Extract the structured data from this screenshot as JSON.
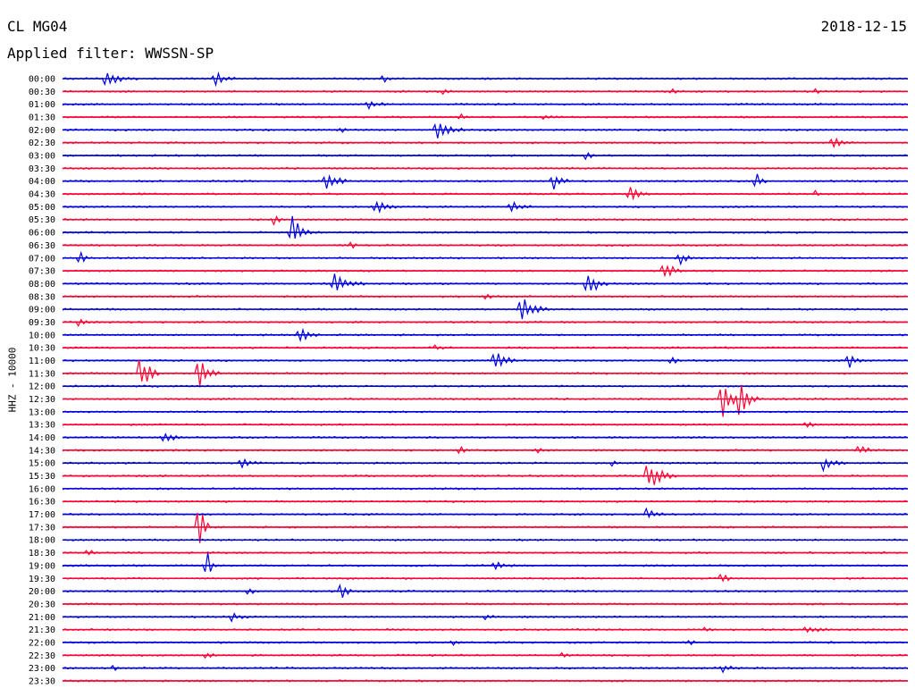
{
  "header": {
    "station": "CL MG04",
    "date": "2018-12-15",
    "filter": "Applied filter: WWSSN-SP"
  },
  "colors": {
    "odd": "#0000dd",
    "even": "#ff0033",
    "text": "#000000"
  },
  "chart_data": {
    "type": "line",
    "title": "CL MG04",
    "ylabel": "HHZ - 10000",
    "rows": [
      "00:00",
      "00:30",
      "01:00",
      "01:30",
      "02:00",
      "02:30",
      "03:00",
      "03:30",
      "04:00",
      "04:30",
      "05:00",
      "05:30",
      "06:00",
      "06:30",
      "07:00",
      "07:30",
      "08:00",
      "08:30",
      "09:00",
      "09:30",
      "10:00",
      "10:30",
      "11:00",
      "11:30",
      "12:00",
      "12:30",
      "13:00",
      "13:30",
      "14:00",
      "14:30",
      "15:00",
      "15:30",
      "16:00",
      "16:30",
      "17:00",
      "17:30",
      "18:00",
      "18:30",
      "19:00",
      "19:30",
      "20:00",
      "20:30",
      "21:00",
      "21:30",
      "22:00",
      "22:30",
      "23:00",
      "23:30"
    ],
    "events": [
      [
        0,
        0.05,
        10,
        3
      ],
      [
        0,
        0.18,
        8,
        2
      ],
      [
        0,
        0.38,
        4,
        1
      ],
      [
        1,
        0.45,
        3,
        1
      ],
      [
        1,
        0.72,
        4,
        1
      ],
      [
        1,
        0.89,
        3,
        1
      ],
      [
        2,
        0.36,
        6,
        2
      ],
      [
        3,
        0.47,
        4,
        1
      ],
      [
        3,
        0.57,
        3,
        1
      ],
      [
        4,
        0.44,
        14,
        3
      ],
      [
        4,
        0.33,
        3,
        1
      ],
      [
        5,
        0.91,
        8,
        2
      ],
      [
        6,
        0.62,
        6,
        1
      ],
      [
        8,
        0.31,
        20,
        2
      ],
      [
        8,
        0.58,
        10,
        2
      ],
      [
        8,
        0.82,
        16,
        1
      ],
      [
        9,
        0.67,
        9,
        2
      ],
      [
        9,
        0.89,
        4,
        1
      ],
      [
        10,
        0.37,
        14,
        2
      ],
      [
        10,
        0.53,
        8,
        2
      ],
      [
        11,
        0.25,
        7,
        1
      ],
      [
        12,
        0.27,
        24,
        2
      ],
      [
        13,
        0.34,
        6,
        1
      ],
      [
        14,
        0.02,
        10,
        1
      ],
      [
        14,
        0.73,
        7,
        2
      ],
      [
        15,
        0.71,
        15,
        2
      ],
      [
        16,
        0.32,
        12,
        3
      ],
      [
        16,
        0.62,
        22,
        2
      ],
      [
        17,
        0.5,
        4,
        1
      ],
      [
        18,
        0.54,
        18,
        3
      ],
      [
        19,
        0.02,
        7,
        1
      ],
      [
        20,
        0.28,
        12,
        2
      ],
      [
        21,
        0.44,
        4,
        1
      ],
      [
        22,
        0.51,
        20,
        2
      ],
      [
        22,
        0.72,
        6,
        1
      ],
      [
        22,
        0.93,
        8,
        2
      ],
      [
        23,
        0.09,
        30,
        2
      ],
      [
        23,
        0.16,
        26,
        2
      ],
      [
        25,
        0.78,
        32,
        2
      ],
      [
        25,
        0.8,
        24,
        2
      ],
      [
        27,
        0.88,
        4,
        1
      ],
      [
        28,
        0.12,
        6,
        2
      ],
      [
        29,
        0.47,
        5,
        1
      ],
      [
        29,
        0.56,
        5,
        1
      ],
      [
        29,
        0.94,
        6,
        2
      ],
      [
        30,
        0.21,
        6,
        2
      ],
      [
        30,
        0.9,
        10,
        2
      ],
      [
        30,
        0.65,
        6,
        1
      ],
      [
        31,
        0.69,
        22,
        3
      ],
      [
        34,
        0.69,
        6,
        2
      ],
      [
        35,
        0.16,
        60,
        1
      ],
      [
        37,
        0.03,
        4,
        1
      ],
      [
        38,
        0.17,
        22,
        1
      ],
      [
        38,
        0.51,
        7,
        2
      ],
      [
        39,
        0.78,
        8,
        1
      ],
      [
        40,
        0.22,
        5,
        1
      ],
      [
        40,
        0.33,
        15,
        1
      ],
      [
        42,
        0.2,
        5,
        2
      ],
      [
        42,
        0.5,
        6,
        1
      ],
      [
        43,
        0.88,
        6,
        2
      ],
      [
        43,
        0.76,
        4,
        1
      ],
      [
        44,
        0.46,
        4,
        1
      ],
      [
        44,
        0.74,
        4,
        1
      ],
      [
        45,
        0.17,
        4,
        1
      ],
      [
        45,
        0.59,
        4,
        1
      ],
      [
        46,
        0.06,
        4,
        1
      ],
      [
        46,
        0.78,
        5,
        2
      ]
    ]
  }
}
